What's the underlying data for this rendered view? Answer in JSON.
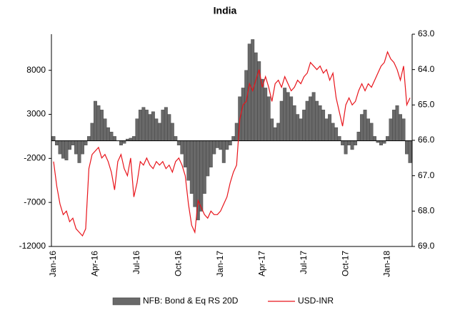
{
  "chart_data": {
    "type": "bar",
    "title": "India",
    "categories": [
      "Jan-16",
      null,
      null,
      null,
      null,
      null,
      null,
      null,
      null,
      null,
      null,
      null,
      null,
      "Apr-16",
      null,
      null,
      null,
      null,
      null,
      null,
      null,
      null,
      null,
      null,
      null,
      null,
      "Jul-16",
      null,
      null,
      null,
      null,
      null,
      null,
      null,
      null,
      null,
      null,
      null,
      null,
      "Oct-16",
      null,
      null,
      null,
      null,
      null,
      null,
      null,
      null,
      null,
      null,
      null,
      null,
      "Jan-17",
      null,
      null,
      null,
      null,
      null,
      null,
      null,
      null,
      null,
      null,
      null,
      null,
      "Apr-17",
      null,
      null,
      null,
      null,
      null,
      null,
      null,
      null,
      null,
      null,
      null,
      null,
      "Jul-17",
      null,
      null,
      null,
      null,
      null,
      null,
      null,
      null,
      null,
      null,
      null,
      null,
      "Oct-17",
      null,
      null,
      null,
      null,
      null,
      null,
      null,
      null,
      null,
      null,
      null,
      null,
      "Jan-18",
      null,
      null,
      null,
      null,
      null,
      null,
      null
    ],
    "series": [
      {
        "name": "NFB: Bond & Eq RS 20D",
        "type": "bar",
        "color": "#696969",
        "values": [
          500,
          -500,
          -1500,
          -2000,
          -2200,
          -1000,
          -500,
          -1500,
          -2500,
          -1500,
          -500,
          500,
          2000,
          4500,
          4000,
          3500,
          2500,
          1500,
          1000,
          500,
          0,
          -500,
          -300,
          200,
          300,
          500,
          2500,
          3500,
          3800,
          3500,
          3000,
          3300,
          2500,
          2000,
          3500,
          3800,
          3000,
          2000,
          500,
          -500,
          -1500,
          -3000,
          -4500,
          -6000,
          -7500,
          -9000,
          -8000,
          -6000,
          -4000,
          -3000,
          -1500,
          -800,
          -1000,
          -2500,
          -1000,
          -500,
          500,
          2000,
          5000,
          6000,
          8000,
          11000,
          11500,
          10000,
          9000,
          7000,
          6000,
          5000,
          2500,
          1500,
          2000,
          4500,
          6000,
          5500,
          5000,
          4000,
          3000,
          2500,
          3500,
          4500,
          5000,
          5500,
          4500,
          4000,
          3500,
          2500,
          3000,
          2000,
          1500,
          500,
          -500,
          -1500,
          -500,
          -1000,
          -500,
          1000,
          3000,
          3500,
          2500,
          2000,
          500,
          -200,
          -500,
          -300,
          500,
          2500,
          3500,
          4000,
          3000,
          2500,
          -1500,
          -2500
        ]
      },
      {
        "name": "USD-INR",
        "type": "line",
        "axis": "y2",
        "color": "#e8141b",
        "values": [
          66.6,
          67.3,
          67.8,
          68.1,
          68.0,
          68.3,
          68.2,
          68.5,
          68.6,
          68.7,
          68.5,
          66.8,
          66.4,
          66.3,
          66.2,
          66.5,
          66.4,
          66.6,
          66.9,
          67.4,
          66.6,
          66.4,
          66.8,
          67.0,
          66.5,
          67.6,
          67.2,
          66.6,
          66.7,
          66.5,
          66.7,
          66.8,
          66.6,
          66.7,
          66.6,
          66.8,
          66.7,
          66.9,
          66.6,
          66.5,
          66.7,
          67.0,
          67.8,
          68.4,
          68.6,
          67.7,
          67.9,
          68.1,
          68.2,
          68.0,
          68.1,
          68.1,
          68.0,
          67.8,
          67.6,
          67.2,
          66.9,
          66.7,
          65.4,
          65.0,
          64.9,
          64.4,
          64.6,
          64.3,
          64.0,
          64.5,
          64.2,
          64.5,
          64.9,
          64.4,
          64.3,
          64.5,
          64.2,
          64.4,
          64.6,
          64.5,
          64.3,
          64.4,
          64.2,
          64.1,
          63.8,
          63.9,
          64.0,
          63.9,
          64.1,
          64.0,
          64.3,
          64.1,
          64.8,
          65.2,
          65.6,
          65.0,
          64.8,
          65.0,
          64.9,
          64.6,
          64.4,
          64.6,
          64.4,
          64.5,
          64.3,
          64.1,
          63.9,
          63.8,
          63.5,
          63.7,
          63.8,
          64.0,
          64.3,
          63.9,
          65.0,
          64.8
        ]
      }
    ],
    "ylim": [
      -12000,
      12100
    ],
    "yticks": [
      -12000,
      -7000,
      -2000,
      3000,
      8000
    ],
    "y2lim": [
      69,
      63
    ],
    "y2ticks": [
      {
        "value": 63,
        "label": "63.0"
      },
      {
        "value": 64,
        "label": "64.0"
      },
      {
        "value": 65,
        "label": "65.0"
      },
      {
        "value": 66,
        "label": "66.0"
      },
      {
        "value": 67,
        "label": "67.0"
      },
      {
        "value": 68,
        "label": "68.0"
      },
      {
        "value": 69,
        "label": "69.0"
      }
    ],
    "grid": false,
    "legend": "bottom"
  }
}
